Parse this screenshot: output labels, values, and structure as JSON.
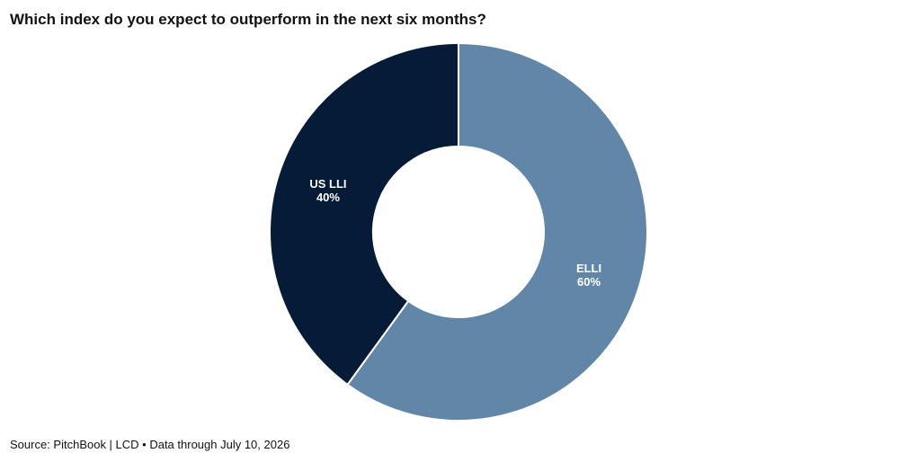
{
  "chart_data": {
    "type": "pie",
    "title": "Which index do you expect to outperform in the next six months?",
    "source": "Source: PitchBook | LCD • Data through July 10, 2026",
    "slices": [
      {
        "name": "ELLI",
        "label": "60%",
        "value": 60,
        "color": "#6186a8"
      },
      {
        "name": "US LLI",
        "label": "40%",
        "value": 40,
        "color": "#061b38"
      }
    ]
  }
}
